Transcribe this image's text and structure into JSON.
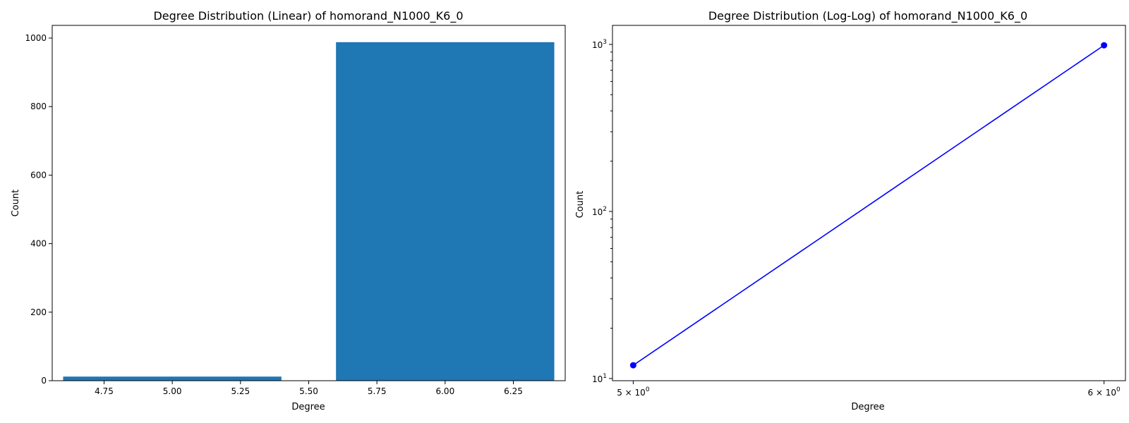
{
  "chart_data": [
    {
      "type": "bar",
      "title": "Degree Distribution (Linear) of homorand_N1000_K6_0",
      "xlabel": "Degree",
      "ylabel": "Count",
      "x": [
        5,
        6
      ],
      "values": [
        12,
        988
      ],
      "bar_width": 0.8,
      "color": "#1f77b4",
      "xlim": [
        4.56,
        6.44
      ],
      "ylim": [
        0,
        1037
      ],
      "xticks": [
        4.75,
        5.0,
        5.25,
        5.5,
        5.75,
        6.0,
        6.25
      ],
      "xtick_labels": [
        "4.75",
        "5.00",
        "5.25",
        "5.50",
        "5.75",
        "6.00",
        "6.25"
      ],
      "yticks": [
        0,
        200,
        400,
        600,
        800,
        1000
      ],
      "ytick_labels": [
        "0",
        "200",
        "400",
        "600",
        "800",
        "1000"
      ],
      "grid": false
    },
    {
      "type": "line",
      "title": "Degree Distribution (Log-Log) of homorand_N1000_K6_0",
      "xlabel": "Degree",
      "ylabel": "Count",
      "x": [
        5,
        6
      ],
      "values": [
        12,
        988
      ],
      "color": "#0000ff",
      "marker": "circle",
      "xscale": "log",
      "yscale": "log",
      "xlim": [
        4.96,
        6.05
      ],
      "ylim": [
        9.7,
        1300
      ],
      "xticks": [
        5,
        6
      ],
      "xtick_labels": [
        {
          "base": "5 × 10",
          "exp": "0"
        },
        {
          "base": "6 × 10",
          "exp": "0"
        }
      ],
      "yticks": [
        10,
        100,
        1000
      ],
      "ytick_labels": [
        {
          "base": "10",
          "exp": "1"
        },
        {
          "base": "10",
          "exp": "2"
        },
        {
          "base": "10",
          "exp": "3"
        }
      ],
      "grid": false
    }
  ]
}
